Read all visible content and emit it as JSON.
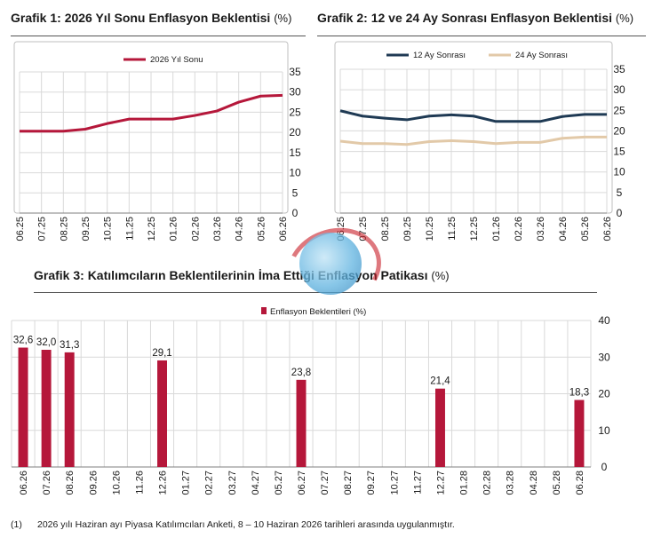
{
  "chart1": {
    "title": "Grafik 1: 2026 Yıl Sonu Enflasyon Beklentisi",
    "unit": "(%)"
  },
  "chart2": {
    "title": "Grafik 2: 12 ve 24 Ay Sonrası Enflasyon Beklentisi",
    "unit": "(%)"
  },
  "chart3": {
    "title": "Grafik 3: Katılımcıların Beklentilerinin İma Ettiği Enflasyon Patikası",
    "unit": "(%)"
  },
  "footnote": {
    "number": "(1)",
    "text": "2026 yılı Haziran ayı Piyasa Katılımcıları Anketi, 8 – 10 Haziran 2026 tarihleri arasında uygulanmıştır."
  },
  "colors": {
    "crimson": "#B5173A",
    "navy": "#1F3A54",
    "tan": "#E2C9A8",
    "grid": "#D9D9D9",
    "axis": "#7F7F7F"
  },
  "chart_data": [
    {
      "type": "line",
      "title": "Grafik 1: 2026 Yıl Sonu Enflasyon Beklentisi (%)",
      "categories": [
        "06.25",
        "07.25",
        "08.25",
        "09.25",
        "10.25",
        "11.25",
        "12.25",
        "01.26",
        "02.26",
        "03.26",
        "04.26",
        "05.26",
        "06.26"
      ],
      "series": [
        {
          "name": "2026 Yıl Sonu",
          "color": "#B5173A",
          "values": [
            20.3,
            20.3,
            20.3,
            20.8,
            22.2,
            23.3,
            23.3,
            23.3,
            24.2,
            25.3,
            27.5,
            29.0,
            29.2
          ]
        }
      ],
      "ylim": [
        0,
        35
      ],
      "yticks": [
        0,
        5,
        10,
        15,
        20,
        25,
        30,
        35
      ],
      "grid": true,
      "legend": "top"
    },
    {
      "type": "line",
      "title": "Grafik 2: 12 ve 24 Ay Sonrası Enflasyon Beklentisi (%)",
      "categories": [
        "06.25",
        "07.25",
        "08.25",
        "09.25",
        "10.25",
        "11.25",
        "12.25",
        "01.26",
        "02.26",
        "03.26",
        "04.26",
        "05.26",
        "06.26"
      ],
      "series": [
        {
          "name": "12 Ay Sonrası",
          "color": "#1F3A54",
          "values": [
            24.9,
            23.6,
            23.1,
            22.7,
            23.6,
            23.9,
            23.6,
            22.3,
            22.3,
            22.3,
            23.5,
            24.0,
            24.0
          ]
        },
        {
          "name": "24 Ay Sonrası",
          "color": "#E2C9A8",
          "values": [
            17.5,
            16.9,
            16.9,
            16.7,
            17.4,
            17.6,
            17.4,
            16.9,
            17.2,
            17.2,
            18.2,
            18.5,
            18.5
          ]
        }
      ],
      "ylim": [
        0,
        35
      ],
      "yticks": [
        0,
        5,
        10,
        15,
        20,
        25,
        30,
        35
      ],
      "grid": true,
      "legend": "top"
    },
    {
      "type": "bar",
      "title": "Grafik 3: Katılımcıların Beklentilerinin İma Ettiği Enflasyon Patikası (%)",
      "categories": [
        "06.26",
        "07.26",
        "08.26",
        "09.26",
        "10.26",
        "11.26",
        "12.26",
        "01.27",
        "02.27",
        "03.27",
        "04.27",
        "05.27",
        "06.27",
        "07.27",
        "08.27",
        "09.27",
        "10.27",
        "11.27",
        "12.27",
        "01.28",
        "02.28",
        "03.28",
        "04.28",
        "05.28",
        "06.28"
      ],
      "series": [
        {
          "name": "Enflasyon Beklentileri (%)",
          "color": "#B5173A",
          "values": [
            32.6,
            32.0,
            31.3,
            null,
            null,
            null,
            29.1,
            null,
            null,
            null,
            null,
            null,
            23.8,
            null,
            null,
            null,
            null,
            null,
            21.4,
            null,
            null,
            null,
            null,
            null,
            18.3
          ],
          "labels": [
            "32,6",
            "32,0",
            "31,3",
            null,
            null,
            null,
            "29,1",
            null,
            null,
            null,
            null,
            null,
            "23,8",
            null,
            null,
            null,
            null,
            null,
            "21,4",
            null,
            null,
            null,
            null,
            null,
            "18,3"
          ]
        }
      ],
      "ylim": [
        0,
        40
      ],
      "yticks": [
        0,
        10,
        20,
        30,
        40
      ],
      "grid": true,
      "legend": "top"
    }
  ]
}
